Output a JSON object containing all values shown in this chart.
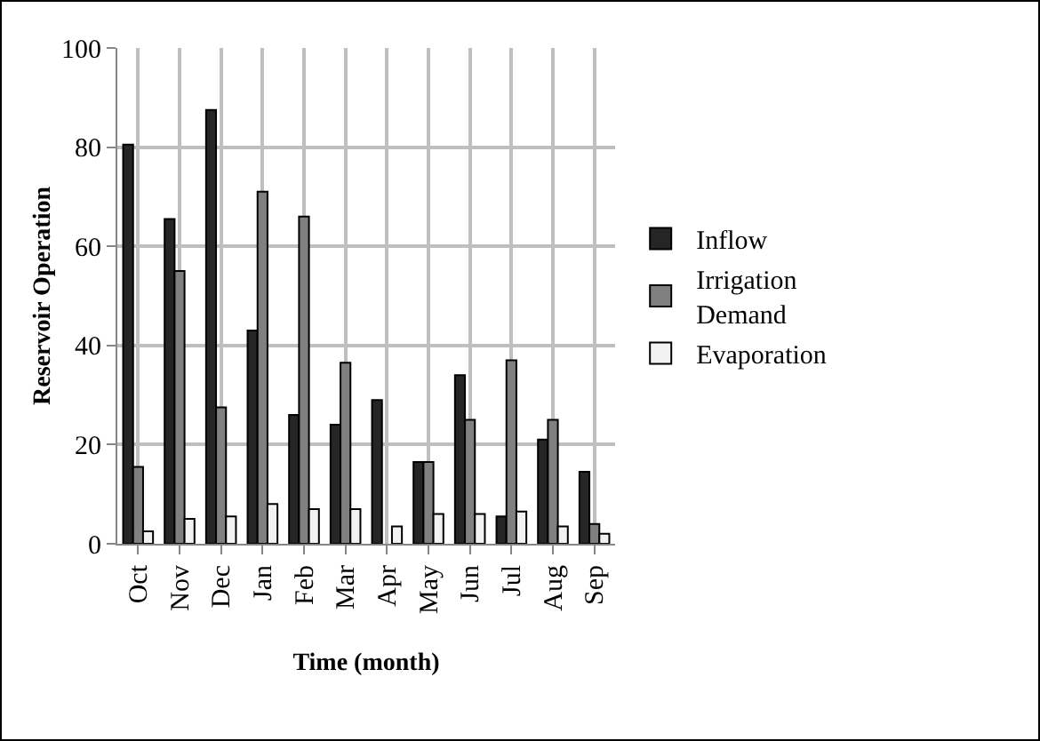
{
  "chart_data": {
    "type": "bar",
    "xlabel": "Time (month)",
    "ylabel": "Reservoir Operation",
    "categories": [
      "Oct",
      "Nov",
      "Dec",
      "Jan",
      "Feb",
      "Mar",
      "Apr",
      "May",
      "Jun",
      "Jul",
      "Aug",
      "Sep"
    ],
    "series": [
      {
        "name": "Inflow",
        "color": "#262626",
        "values": [
          80.5,
          65.5,
          87.5,
          43,
          26,
          24,
          29,
          16.5,
          34,
          5.5,
          21,
          14.5
        ]
      },
      {
        "name": "Irrigation Demand",
        "color": "#808080",
        "values": [
          15.5,
          55,
          27.5,
          71,
          66,
          36.5,
          null,
          16.5,
          25,
          37,
          25,
          4
        ]
      },
      {
        "name": "Evaporation",
        "color": "#f2f2f2",
        "values": [
          2.5,
          5,
          5.5,
          8,
          7,
          7,
          3.5,
          6,
          6,
          6.5,
          3.5,
          2
        ]
      }
    ],
    "ylim": [
      0,
      100
    ],
    "yticks": [
      0,
      20,
      40,
      60,
      80,
      100
    ],
    "grid": true,
    "legend": "right"
  }
}
